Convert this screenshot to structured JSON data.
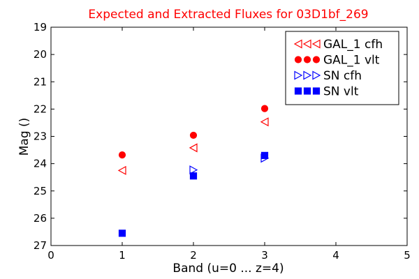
{
  "chart_data": {
    "type": "scatter",
    "title": "Expected and Extracted Fluxes for 03D1bf_269",
    "xlabel": "Band (u=0 ... z=4)",
    "ylabel": "Mag ()",
    "xlim": [
      0,
      5
    ],
    "ylim": [
      27,
      19
    ],
    "y_inverted": true,
    "x_ticks": [
      "0",
      "1",
      "2",
      "3",
      "4",
      "5"
    ],
    "y_ticks": [
      "19",
      "20",
      "21",
      "22",
      "23",
      "24",
      "25",
      "26",
      "27"
    ],
    "grid": false,
    "legend_position": "top-right",
    "series": [
      {
        "name": "GAL_1 cfh",
        "marker": "triangle-left",
        "filled": false,
        "color": "#ff0000",
        "points": [
          {
            "x": 1,
            "y": 24.25
          },
          {
            "x": 2,
            "y": 23.42
          },
          {
            "x": 3,
            "y": 22.47
          }
        ]
      },
      {
        "name": "GAL_1 vlt",
        "marker": "circle",
        "filled": true,
        "color": "#ff0000",
        "points": [
          {
            "x": 1,
            "y": 23.68
          },
          {
            "x": 2,
            "y": 22.96
          },
          {
            "x": 3,
            "y": 21.98
          }
        ]
      },
      {
        "name": "SN cfh",
        "marker": "triangle-right",
        "filled": false,
        "color": "#0000ff",
        "points": [
          {
            "x": 2,
            "y": 24.23
          },
          {
            "x": 3,
            "y": 23.8
          }
        ]
      },
      {
        "name": "SN vlt",
        "marker": "square",
        "filled": true,
        "color": "#0000ff",
        "points": [
          {
            "x": 1,
            "y": 26.55
          },
          {
            "x": 2,
            "y": 24.45
          },
          {
            "x": 3,
            "y": 23.7
          }
        ]
      }
    ]
  }
}
